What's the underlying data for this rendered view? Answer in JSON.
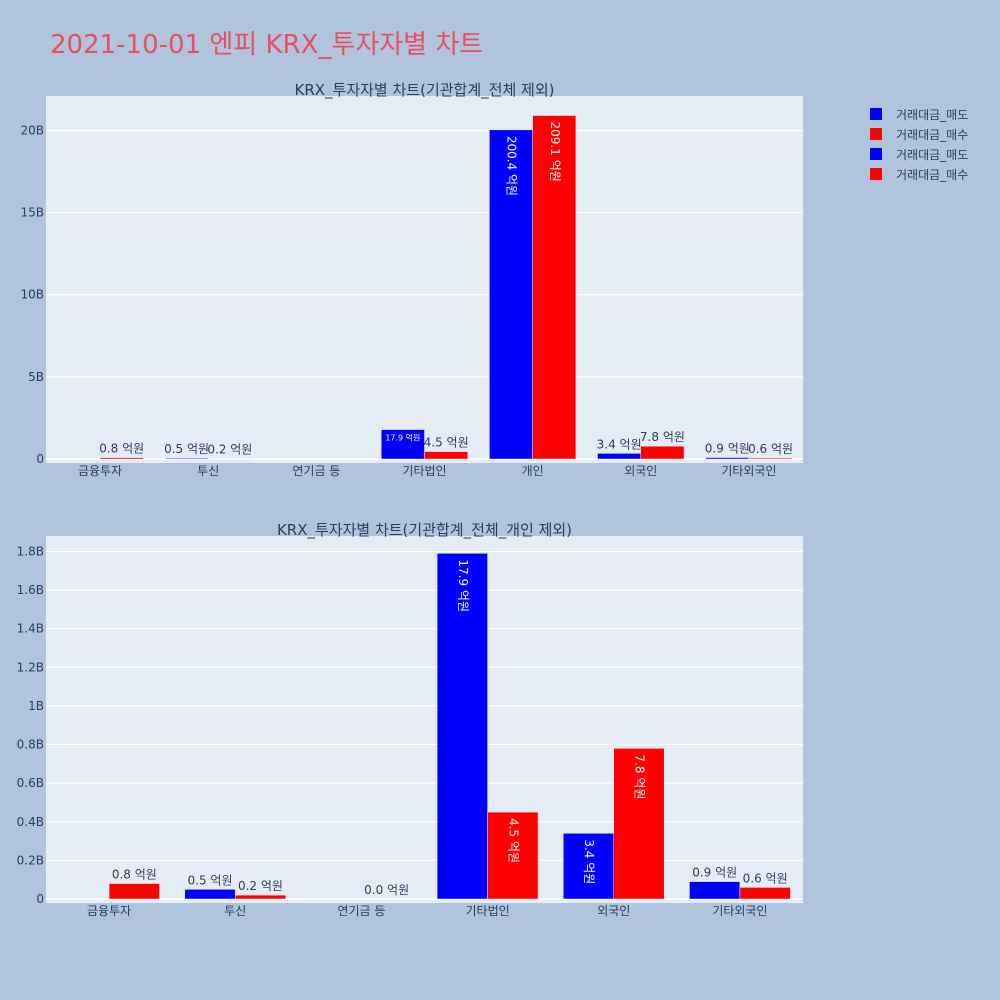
{
  "title": "2021-10-01 엔피 KRX_투자자별 차트",
  "colors": {
    "sell": "#0000ff",
    "buy": "#ff0000",
    "plot_bg": "#e5ecf6",
    "page_bg": "#b0c4de",
    "title": "#ea4f5f"
  },
  "legend": [
    {
      "label": "거래대금_매도",
      "color": "#0000ff"
    },
    {
      "label": "거래대금_매수",
      "color": "#ff0000"
    },
    {
      "label": "거래대금_매도",
      "color": "#0000ff"
    },
    {
      "label": "거래대금_매수",
      "color": "#ff0000"
    }
  ],
  "chart_data": [
    {
      "type": "bar",
      "title": "KRX_투자자별 차트(기관합계_전체 제외)",
      "categories": [
        "금융투자",
        "투신",
        "연기금 등",
        "기타법인",
        "개인",
        "외국인",
        "기타외국인"
      ],
      "series": [
        {
          "name": "거래대금_매도",
          "values": [
            0,
            0.05,
            0,
            1.79,
            20.04,
            0.34,
            0.09
          ],
          "labels": [
            "",
            "0.5 억원",
            "",
            "17.9 억원",
            "200.4 억원",
            "3.4 억원",
            "0.9 억원"
          ]
        },
        {
          "name": "거래대금_매수",
          "values": [
            0.08,
            0.02,
            0,
            0.45,
            20.91,
            0.78,
            0.06
          ],
          "labels": [
            "0.8 억원",
            "0.2 억원",
            "",
            "4.5 억원",
            "209.1 억원",
            "7.8 억원",
            "0.6 억원"
          ]
        }
      ],
      "ylim": [
        0,
        22.1
      ],
      "yticks": [
        0,
        5,
        10,
        15,
        20
      ],
      "yticklabels": [
        "0",
        "5B",
        "10B",
        "15B",
        "20B"
      ],
      "grid": true
    },
    {
      "type": "bar",
      "title": "KRX_투자자별 차트(기관합계_전체_개인 제외)",
      "categories": [
        "금융투자",
        "투신",
        "연기금 등",
        "기타법인",
        "외국인",
        "기타외국인"
      ],
      "series": [
        {
          "name": "거래대금_매도",
          "values": [
            0,
            0.05,
            0,
            1.79,
            0.34,
            0.09
          ],
          "labels": [
            "",
            "0.5 억원",
            "",
            "17.9 억원",
            "3.4 억원",
            "0.9 억원"
          ]
        },
        {
          "name": "거래대금_매수",
          "values": [
            0.08,
            0.02,
            0,
            0.45,
            0.78,
            0.06
          ],
          "labels": [
            "0.8 억원",
            "0.2 억원",
            "0.0 억원",
            "4.5 억원",
            "7.8 억원",
            "0.6 억원"
          ]
        }
      ],
      "ylim": [
        0,
        1.88
      ],
      "yticks": [
        0,
        0.2,
        0.4,
        0.6,
        0.8,
        1.0,
        1.2,
        1.4,
        1.6,
        1.8
      ],
      "yticklabels": [
        "0",
        "0.2B",
        "0.4B",
        "0.6B",
        "0.8B",
        "1B",
        "1.2B",
        "1.4B",
        "1.6B",
        "1.8B"
      ],
      "grid": true
    }
  ]
}
